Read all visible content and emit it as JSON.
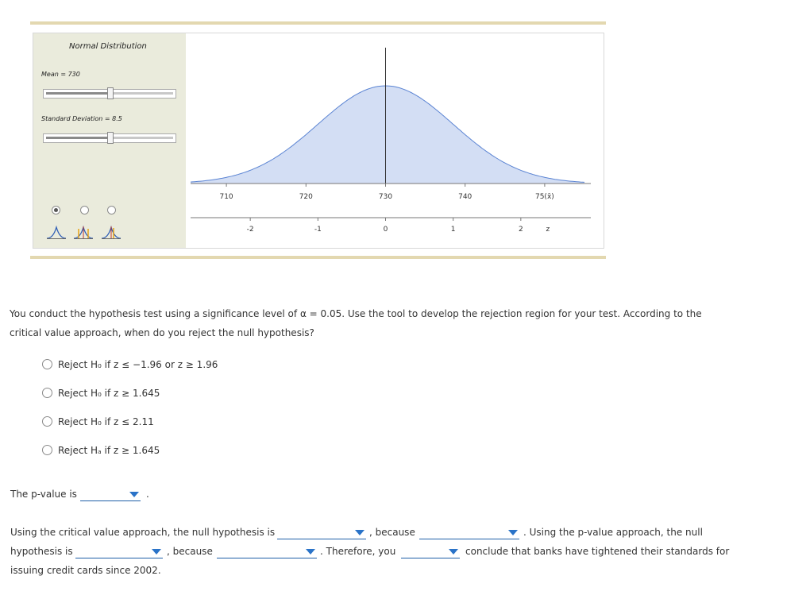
{
  "tool": {
    "title": "Normal Distribution",
    "mean_label": "Mean = 730",
    "sd_label": "Standard Deviation = 8.5",
    "mean_slider_fraction": 0.5,
    "sd_slider_fraction": 0.5,
    "distribution_icons": [
      "single-tail-curve-icon",
      "two-tailed-curve-icon",
      "right-tailed-curve-icon"
    ],
    "selected_mode": 0,
    "colors": {
      "panel": "#eaebdc",
      "curve_fill": "#d3def4",
      "curve_line": "#5b84d3",
      "rule": "#e3d8b0"
    }
  },
  "chart_data": {
    "type": "area",
    "mean": 730,
    "sd": 8.5,
    "x_ticks": [
      "710",
      "720",
      "730",
      "740",
      "750"
    ],
    "x_axis_suffix": "(x̄)",
    "z_ticks": [
      "-2",
      "-1",
      "0",
      "1",
      "2"
    ],
    "z_label": "z",
    "xlim": [
      705.5,
      755
    ],
    "marker_x": 730
  },
  "question": {
    "text": "You conduct the hypothesis test using a significance level of α = 0.05. Use the tool to develop the rejection region for your test. According to the critical value approach, when do you reject the null hypothesis?",
    "options": [
      "Reject H₀ if z ≤ −1.96 or z ≥ 1.96",
      "Reject H₀ if z ≥ 1.645",
      "Reject H₀ if z ≤ 2.11",
      "Reject Hₐ if z ≥ 1.645"
    ]
  },
  "pvalue": {
    "label": "The p-value is",
    "end": "."
  },
  "conclusion": {
    "part1": "Using the critical value approach, the null hypothesis is",
    "because1": ", because",
    "part2": ". Using the p-value approach, the null",
    "part3": "hypothesis is",
    "because2": ", because",
    "therefore": ". Therefore, you",
    "part4": "conclude that banks have tightened their standards for",
    "part5": "issuing credit cards since 2002."
  }
}
